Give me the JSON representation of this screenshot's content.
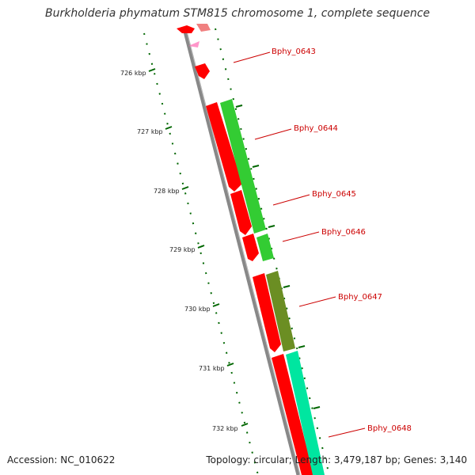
{
  "title": "Burkholderia phymatum STM815 chromosome 1, complete sequence",
  "accession": "Accession: NC_010622",
  "summary": "Topology: circular; Length: 3,479,187 bp; Genes: 3,140",
  "colors": {
    "forward_cds": "#ff0000",
    "reverse_cds": "#33cc33",
    "olive_cds": "#6b8e23",
    "teal_cds": "#00e6a0",
    "backbone": "#888888",
    "tick": "#006600",
    "label": "#cc0000"
  },
  "kbp_ticks": [
    "726 kbp",
    "727 kbp",
    "728 kbp",
    "729 kbp",
    "730 kbp",
    "731 kbp",
    "732 kbp"
  ],
  "gene_labels": [
    "Bphy_0643",
    "Bphy_0644",
    "Bphy_0645",
    "Bphy_0646",
    "Bphy_0647",
    "Bphy_0648"
  ]
}
